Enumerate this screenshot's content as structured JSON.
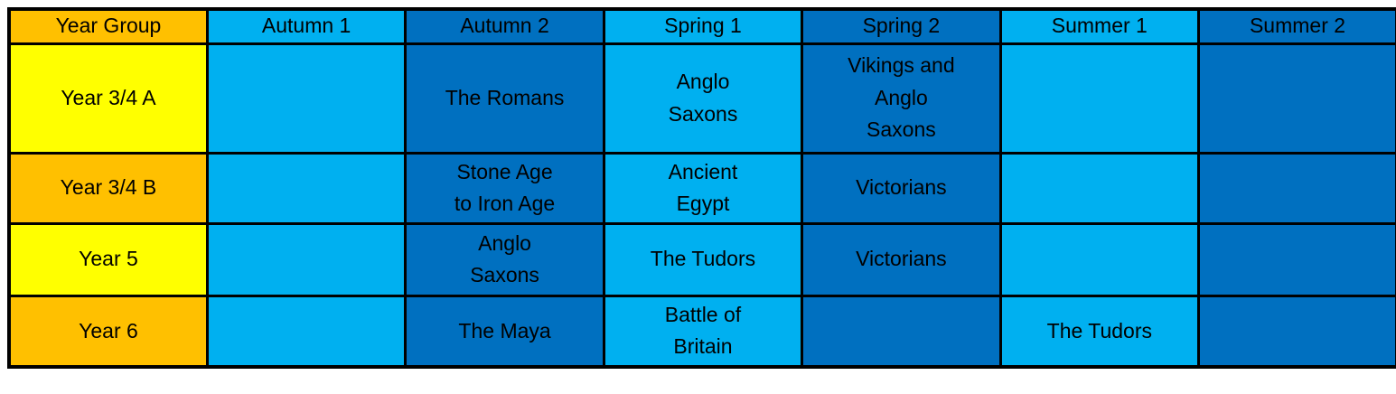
{
  "colors": {
    "header_year_group": "#FFC000",
    "row_header_yellow": "#FFFF00",
    "row_header_orange": "#FFC000",
    "column_light_blue": "#00B0F0",
    "column_dark_blue": "#0070C0",
    "border": "#000000",
    "text": "#000000",
    "page_background": "#FFFFFF"
  },
  "table": {
    "header": {
      "year_group": "Year Group",
      "autumn1": "Autumn 1",
      "autumn2": "Autumn 2",
      "spring1": "Spring 1",
      "spring2": "Spring 2",
      "summer1": "Summer 1",
      "summer2": "Summer 2"
    },
    "rows": [
      {
        "year_group": "Year 3/4 A",
        "cells": [
          "",
          "The Romans",
          "Anglo\nSaxons",
          "Vikings and\nAnglo\nSaxons",
          "",
          ""
        ]
      },
      {
        "year_group": "Year 3/4 B",
        "cells": [
          "",
          "Stone Age\nto Iron Age",
          "Ancient\nEgypt",
          "Victorians",
          "",
          ""
        ]
      },
      {
        "year_group": "Year 5",
        "cells": [
          "",
          "Anglo\nSaxons",
          "The Tudors",
          "Victorians",
          "",
          ""
        ]
      },
      {
        "year_group": "Year 6",
        "cells": [
          "",
          "The Maya",
          "Battle of\nBritain",
          "",
          "The Tudors",
          ""
        ]
      }
    ]
  }
}
